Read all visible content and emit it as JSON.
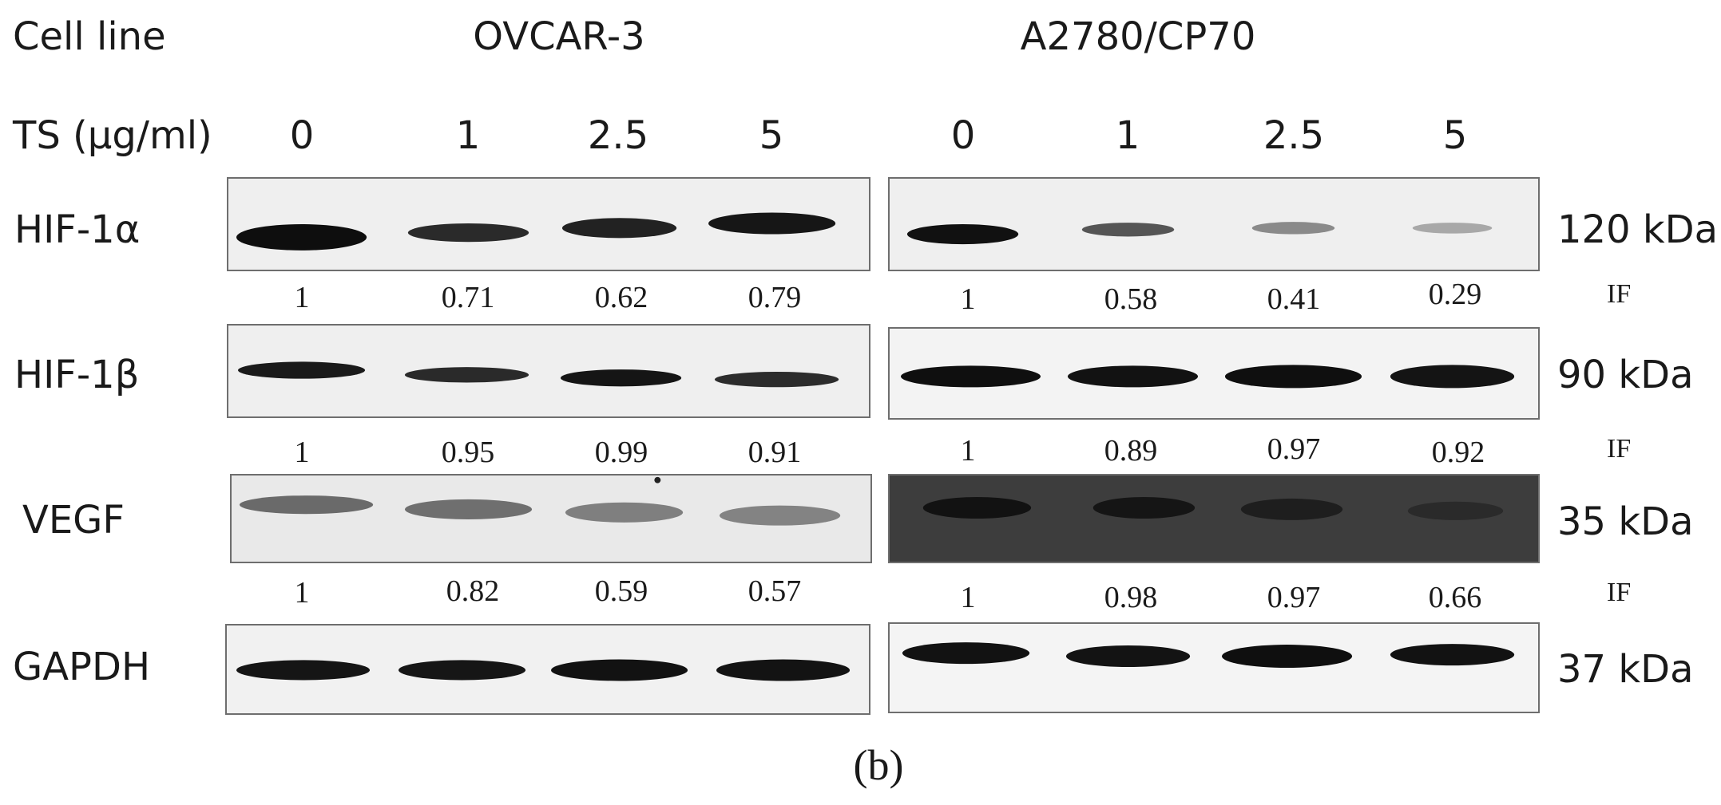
{
  "header": {
    "cell_line_label": "Cell line",
    "ts_label": "TS (μg/ml)",
    "groups": [
      {
        "name": "OVCAR-3",
        "doses": [
          "0",
          "1",
          "2.5",
          "5"
        ]
      },
      {
        "name": "A2780/CP70",
        "doses": [
          "0",
          "1",
          "2.5",
          "5"
        ]
      }
    ]
  },
  "rows": [
    {
      "protein": "HIF-1α",
      "size": "120 kDa",
      "if_left": [
        "1",
        "0.71",
        "0.62",
        "0.79"
      ],
      "if_right": [
        "1",
        "0.58",
        "0.41",
        "0.29"
      ],
      "if_label": "IF"
    },
    {
      "protein": "HIF-1β",
      "size": "90 kDa",
      "if_left": [
        "1",
        "0.95",
        "0.99",
        "0.91"
      ],
      "if_right": [
        "1",
        "0.89",
        "0.97",
        "0.92"
      ],
      "if_label": "IF"
    },
    {
      "protein": "VEGF",
      "size": "35 kDa",
      "if_left": [
        "1",
        "0.82",
        "0.59",
        "0.57"
      ],
      "if_right": [
        "1",
        "0.98",
        "0.97",
        "0.66"
      ],
      "if_label": "IF"
    },
    {
      "protein": "GAPDH",
      "size": "37 kDa"
    }
  ],
  "caption": "(b)",
  "colors": {
    "band": "#111111",
    "membrane_light": "#efefef",
    "membrane_dark": "#2e2e2e",
    "border": "#6e6e6e"
  }
}
